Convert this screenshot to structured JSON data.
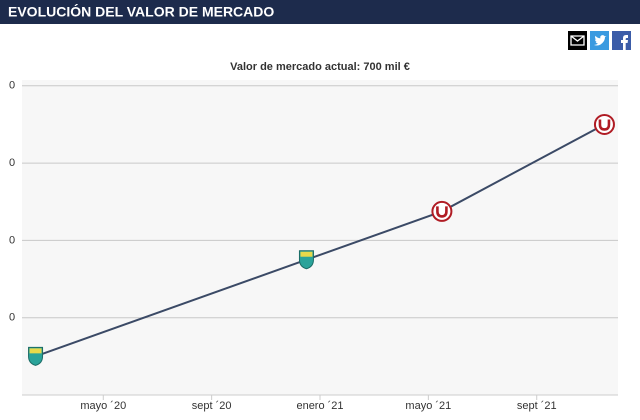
{
  "header": {
    "title": "EVOLUCIÓN DEL VALOR DE MERCADO"
  },
  "chart_data": {
    "type": "line",
    "title": "Valor de mercado actual: 700 mil €",
    "x": [
      "2020-02",
      "2020-12",
      "2021-05",
      "2021-11"
    ],
    "series": [
      {
        "color": "#3b4a66",
        "values": [
          100000,
          350000,
          475000,
          700000
        ]
      }
    ],
    "xlim": [
      "2020-02",
      "2021-12"
    ],
    "xticks": [
      {
        "value": "2020-05",
        "label": "mayo ´20"
      },
      {
        "value": "2020-09",
        "label": "sept ´20"
      },
      {
        "value": "2021-01",
        "label": "enero ´21"
      },
      {
        "value": "2021-05",
        "label": "mayo ´21"
      },
      {
        "value": "2021-09",
        "label": "sept ´21"
      }
    ],
    "ylim": [
      0,
      815000
    ],
    "yticks": [
      {
        "value": 200000,
        "label": "0"
      },
      {
        "value": 400000,
        "label": "0"
      },
      {
        "value": 600000,
        "label": "0"
      },
      {
        "value": 800000,
        "label": "0"
      }
    ],
    "grid": true
  }
}
